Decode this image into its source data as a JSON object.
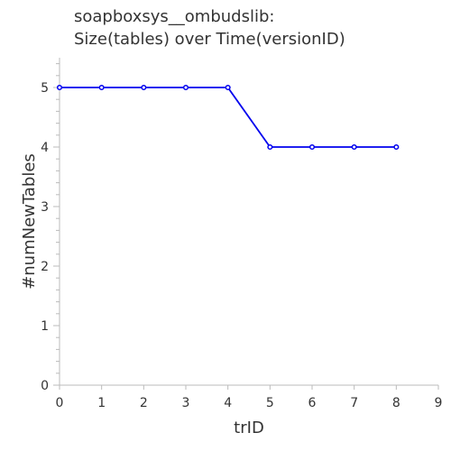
{
  "chart_data": {
    "type": "line",
    "title_lines": [
      "soapboxsys__ombudslib:",
      "Size(tables) over Time(versionID)"
    ],
    "xlabel": "trID",
    "ylabel": "#numNewTables",
    "xlim": [
      0,
      9
    ],
    "ylim": [
      0,
      5.5
    ],
    "x_ticks": [
      "0",
      "1",
      "2",
      "3",
      "4",
      "5",
      "6",
      "7",
      "8",
      "9"
    ],
    "y_ticks": [
      "0",
      "1",
      "2",
      "3",
      "4",
      "5"
    ],
    "grid": false,
    "legend": "none",
    "series": [
      {
        "x": [
          0,
          1,
          2,
          3,
          4,
          5,
          6,
          7,
          8
        ],
        "y": [
          5,
          5,
          5,
          5,
          5,
          4,
          4,
          4,
          4
        ],
        "color": "#0000ee"
      }
    ]
  }
}
